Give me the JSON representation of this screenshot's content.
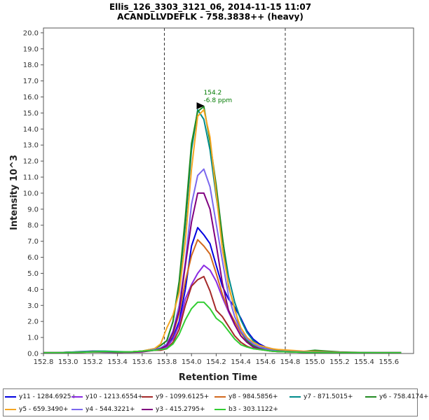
{
  "chart_data": {
    "type": "line",
    "title": "Ellis_126_3303_3121_06, 2014-11-15 11:07",
    "subtitle": "ACANDLLVDEFLK - 758.3838++ (heavy)",
    "xlabel": "Retention Time",
    "ylabel": "Intensity 10^3",
    "xlim": [
      152.8,
      155.8
    ],
    "ylim": [
      0,
      20.3
    ],
    "xticks": [
      "152.8",
      "153.0",
      "153.2",
      "153.4",
      "153.6",
      "153.8",
      "154.0",
      "154.2",
      "154.4",
      "154.6",
      "154.8",
      "155.0",
      "155.2",
      "155.4",
      "155.6"
    ],
    "yticks": [
      "0.0",
      "1.0",
      "2.0",
      "3.0",
      "4.0",
      "5.0",
      "6.0",
      "7.0",
      "8.0",
      "9.0",
      "10.0",
      "11.0",
      "12.0",
      "13.0",
      "14.0",
      "15.0",
      "16.0",
      "17.0",
      "18.0",
      "19.0",
      "20.0"
    ],
    "integration_bounds": [
      153.78,
      154.76
    ],
    "annotation": {
      "x": 154.07,
      "y": 15.45,
      "line1": "154.2",
      "line2": "-6.8 ppm"
    },
    "x": [
      152.8,
      152.9,
      153.0,
      153.1,
      153.2,
      153.3,
      153.4,
      153.5,
      153.6,
      153.7,
      153.75,
      153.8,
      153.85,
      153.9,
      153.95,
      154.0,
      154.05,
      154.1,
      154.15,
      154.2,
      154.25,
      154.3,
      154.35,
      154.4,
      154.45,
      154.5,
      154.55,
      154.6,
      154.65,
      154.7,
      154.8,
      154.9,
      155.0,
      155.1,
      155.2,
      155.3,
      155.4,
      155.5,
      155.6,
      155.7
    ],
    "series": [
      {
        "name": "y11 - 1284.6925+",
        "color": "#0000e0",
        "values": [
          0.05,
          0.05,
          0.08,
          0.1,
          0.12,
          0.1,
          0.08,
          0.1,
          0.15,
          0.25,
          0.3,
          0.5,
          1.0,
          2.0,
          4.0,
          6.7,
          7.85,
          7.4,
          6.85,
          5.5,
          4.2,
          3.4,
          2.9,
          2.2,
          1.4,
          0.9,
          0.6,
          0.4,
          0.3,
          0.2,
          0.15,
          0.12,
          0.1,
          0.1,
          0.08,
          0.06,
          0.05,
          0.05,
          0.05,
          0.05
        ]
      },
      {
        "name": "y10 - 1213.6554+",
        "color": "#8a2be2",
        "values": [
          0.05,
          0.05,
          0.07,
          0.1,
          0.1,
          0.08,
          0.07,
          0.1,
          0.12,
          0.2,
          0.25,
          0.4,
          0.9,
          1.8,
          3.4,
          4.3,
          5.0,
          5.5,
          5.2,
          4.5,
          3.5,
          2.6,
          1.8,
          1.1,
          0.7,
          0.45,
          0.3,
          0.25,
          0.2,
          0.15,
          0.12,
          0.1,
          0.08,
          0.08,
          0.06,
          0.05,
          0.05,
          0.05,
          0.05,
          0.05
        ]
      },
      {
        "name": "y9 - 1099.6125+",
        "color": "#a52a2a",
        "values": [
          0.05,
          0.05,
          0.06,
          0.1,
          0.15,
          0.12,
          0.1,
          0.1,
          0.15,
          0.2,
          0.2,
          0.3,
          0.7,
          1.5,
          3.0,
          4.2,
          4.6,
          4.8,
          3.9,
          2.7,
          2.3,
          1.7,
          1.1,
          0.7,
          0.45,
          0.3,
          0.25,
          0.2,
          0.15,
          0.12,
          0.1,
          0.08,
          0.07,
          0.06,
          0.05,
          0.05,
          0.05,
          0.05,
          0.05,
          0.05
        ]
      },
      {
        "name": "y8 - 984.5856+",
        "color": "#d2691e",
        "values": [
          0.05,
          0.05,
          0.07,
          0.1,
          0.12,
          0.1,
          0.08,
          0.1,
          0.12,
          0.25,
          0.3,
          0.5,
          1.2,
          2.5,
          4.5,
          6.1,
          7.1,
          6.7,
          6.2,
          5.0,
          3.7,
          2.7,
          2.0,
          1.3,
          0.8,
          0.5,
          0.35,
          0.25,
          0.2,
          0.15,
          0.12,
          0.1,
          0.08,
          0.07,
          0.06,
          0.05,
          0.05,
          0.05,
          0.05,
          0.05
        ]
      },
      {
        "name": "y7 - 871.5015+",
        "color": "#008b8b",
        "values": [
          0.05,
          0.05,
          0.08,
          0.12,
          0.15,
          0.15,
          0.12,
          0.1,
          0.15,
          0.3,
          0.5,
          0.8,
          2.0,
          4.3,
          8.0,
          12.7,
          15.2,
          14.6,
          12.7,
          9.8,
          7.2,
          4.8,
          3.2,
          2.1,
          1.3,
          0.8,
          0.5,
          0.35,
          0.25,
          0.2,
          0.15,
          0.12,
          0.1,
          0.1,
          0.08,
          0.06,
          0.06,
          0.05,
          0.05,
          0.05
        ]
      },
      {
        "name": "y6 - 758.4174+",
        "color": "#228b22",
        "values": [
          0.05,
          0.05,
          0.08,
          0.1,
          0.12,
          0.1,
          0.1,
          0.1,
          0.15,
          0.3,
          0.5,
          0.8,
          2.0,
          4.5,
          8.5,
          13.1,
          15.1,
          15.4,
          13.2,
          10.5,
          7.3,
          4.2,
          2.8,
          1.4,
          0.8,
          0.5,
          0.35,
          0.3,
          0.25,
          0.2,
          0.15,
          0.12,
          0.2,
          0.15,
          0.1,
          0.08,
          0.06,
          0.05,
          0.05,
          0.05
        ]
      },
      {
        "name": "y5 - 659.3490+",
        "color": "#f5a623",
        "values": [
          0.05,
          0.05,
          0.06,
          0.08,
          0.1,
          0.1,
          0.08,
          0.1,
          0.15,
          0.3,
          0.6,
          1.6,
          2.4,
          3.8,
          7.0,
          11.5,
          14.8,
          15.2,
          13.5,
          10.0,
          6.5,
          4.3,
          2.7,
          1.6,
          1.0,
          0.7,
          0.5,
          0.4,
          0.3,
          0.25,
          0.2,
          0.15,
          0.12,
          0.1,
          0.08,
          0.06,
          0.05,
          0.05,
          0.05,
          0.05
        ]
      },
      {
        "name": "y4 - 544.3221+",
        "color": "#7b68ee",
        "values": [
          0.05,
          0.05,
          0.07,
          0.1,
          0.12,
          0.1,
          0.08,
          0.1,
          0.12,
          0.25,
          0.35,
          0.6,
          1.4,
          3.0,
          5.7,
          9.3,
          11.1,
          11.5,
          10.4,
          8.1,
          5.8,
          3.6,
          2.3,
          1.4,
          0.9,
          0.6,
          0.4,
          0.3,
          0.2,
          0.15,
          0.12,
          0.1,
          0.08,
          0.08,
          0.06,
          0.05,
          0.05,
          0.05,
          0.05,
          0.05
        ]
      },
      {
        "name": "y3 - 415.2795+",
        "color": "#800080",
        "values": [
          0.05,
          0.05,
          0.06,
          0.08,
          0.1,
          0.1,
          0.08,
          0.08,
          0.1,
          0.2,
          0.3,
          0.5,
          1.3,
          2.7,
          5.5,
          8.2,
          10.0,
          10.0,
          9.0,
          6.8,
          4.4,
          2.7,
          1.8,
          1.1,
          0.7,
          0.4,
          0.3,
          0.2,
          0.15,
          0.12,
          0.1,
          0.08,
          0.06,
          0.06,
          0.05,
          0.05,
          0.05,
          0.05,
          0.05,
          0.05
        ]
      },
      {
        "name": "b3 - 303.1122+",
        "color": "#32cd32",
        "values": [
          0.05,
          0.05,
          0.06,
          0.08,
          0.1,
          0.12,
          0.1,
          0.1,
          0.15,
          0.2,
          0.25,
          0.3,
          0.6,
          1.2,
          2.1,
          2.8,
          3.2,
          3.2,
          2.8,
          2.2,
          1.9,
          1.4,
          0.9,
          0.55,
          0.4,
          0.3,
          0.25,
          0.2,
          0.15,
          0.12,
          0.1,
          0.08,
          0.06,
          0.06,
          0.05,
          0.05,
          0.05,
          0.05,
          0.05,
          0.05
        ]
      }
    ]
  }
}
